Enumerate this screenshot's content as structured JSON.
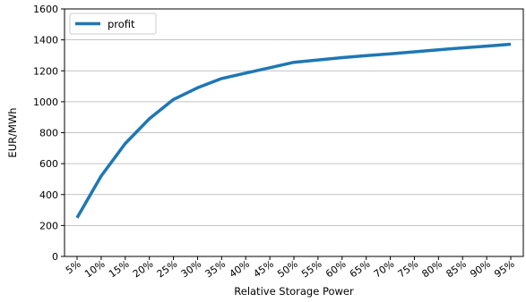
{
  "chart_data": {
    "type": "line",
    "title": "",
    "xlabel": "Relative Storage Power",
    "ylabel": "EUR/MWh",
    "categories": [
      "5%",
      "10%",
      "15%",
      "20%",
      "25%",
      "30%",
      "35%",
      "40%",
      "45%",
      "50%",
      "55%",
      "60%",
      "65%",
      "70%",
      "75%",
      "80%",
      "85%",
      "90%",
      "95%"
    ],
    "series": [
      {
        "name": "profit",
        "color": "#1f77b4",
        "values": [
          250,
          520,
          730,
          890,
          1015,
          1090,
          1150,
          1185,
          1220,
          1255,
          1270,
          1285,
          1298,
          1310,
          1323,
          1336,
          1348,
          1360,
          1372
        ]
      }
    ],
    "ylim": [
      0,
      1600
    ],
    "yticks": [
      0,
      200,
      400,
      600,
      800,
      1000,
      1200,
      1400,
      1600
    ],
    "grid": "horizontal",
    "legend_position": "top-left"
  }
}
